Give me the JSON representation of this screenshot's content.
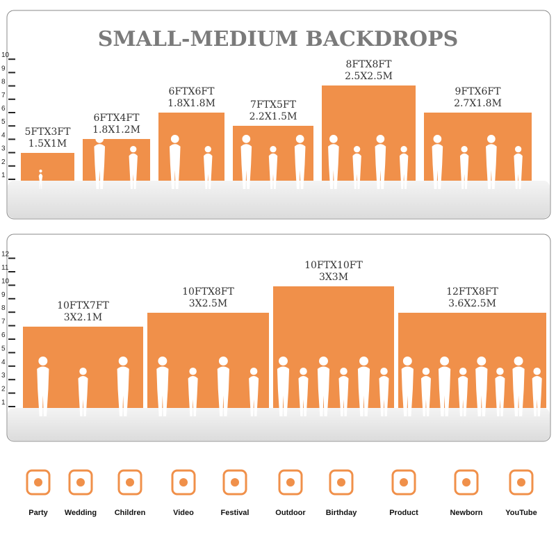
{
  "title": "SMALL-MEDIUM BACKDROPS",
  "panels": [
    {
      "ruler": [
        1,
        2,
        3,
        4,
        5,
        6,
        7,
        8,
        9,
        10
      ],
      "backdrops": [
        {
          "feet": "5FTX3FT",
          "meters": "1.5X1M"
        },
        {
          "feet": "6FTX4FT",
          "meters": "1.8X1.2M"
        },
        {
          "feet": "6FTX6FT",
          "meters": "1.8X1.8M"
        },
        {
          "feet": "7FTX5FT",
          "meters": "2.2X1.5M"
        },
        {
          "feet": "8FTX8FT",
          "meters": "2.5X2.5M"
        },
        {
          "feet": "9FTX6FT",
          "meters": "2.7X1.8M"
        }
      ]
    },
    {
      "ruler": [
        1,
        2,
        3,
        4,
        5,
        6,
        7,
        8,
        9,
        10,
        11,
        12
      ],
      "backdrops": [
        {
          "feet": "10FTX7FT",
          "meters": "3X2.1M"
        },
        {
          "feet": "10FTX8FT",
          "meters": "3X2.5M"
        },
        {
          "feet": "10FTX10FT",
          "meters": "3X3M"
        },
        {
          "feet": "12FTX8FT",
          "meters": "3.6X2.5M"
        }
      ]
    }
  ],
  "uses": [
    "Party",
    "Wedding",
    "Children",
    "Video",
    "Festival",
    "Outdoor",
    "Birthday",
    "Product",
    "Newborn",
    "YouTube"
  ]
}
